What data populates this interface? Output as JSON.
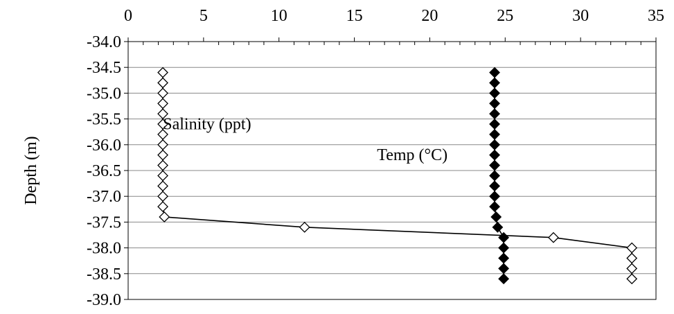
{
  "chart_data": {
    "type": "scatter",
    "title": "",
    "xlabel": "",
    "ylabel": "Depth (m)",
    "xlim": [
      0,
      35
    ],
    "ylim": [
      -39.0,
      -34.0
    ],
    "x_ticks": [
      "0",
      "5",
      "10",
      "15",
      "20",
      "25",
      "30",
      "35"
    ],
    "y_ticks": [
      "-34.0",
      "-34.5",
      "-35.0",
      "-35.5",
      "-36.0",
      "-36.5",
      "-37.0",
      "-37.5",
      "-38.0",
      "-38.5",
      "-39.0"
    ],
    "x_axis_position": "top",
    "grid": "horizontal",
    "series": [
      {
        "name": "Salinity (ppt)",
        "marker": "open-diamond",
        "line": true,
        "color": "#000000",
        "points": [
          {
            "x": 2.3,
            "y": -34.6
          },
          {
            "x": 2.3,
            "y": -34.8
          },
          {
            "x": 2.3,
            "y": -35.0
          },
          {
            "x": 2.3,
            "y": -35.2
          },
          {
            "x": 2.3,
            "y": -35.4
          },
          {
            "x": 2.3,
            "y": -35.6
          },
          {
            "x": 2.3,
            "y": -35.8
          },
          {
            "x": 2.3,
            "y": -36.0
          },
          {
            "x": 2.3,
            "y": -36.2
          },
          {
            "x": 2.3,
            "y": -36.4
          },
          {
            "x": 2.3,
            "y": -36.6
          },
          {
            "x": 2.3,
            "y": -36.8
          },
          {
            "x": 2.3,
            "y": -37.0
          },
          {
            "x": 2.3,
            "y": -37.2
          },
          {
            "x": 2.4,
            "y": -37.4
          },
          {
            "x": 11.7,
            "y": -37.6
          },
          {
            "x": 28.2,
            "y": -37.8
          },
          {
            "x": 33.4,
            "y": -38.0
          },
          {
            "x": 33.4,
            "y": -38.2
          },
          {
            "x": 33.4,
            "y": -38.4
          },
          {
            "x": 33.4,
            "y": -38.6
          }
        ]
      },
      {
        "name": "Temp (°C)",
        "marker": "filled-diamond",
        "line": true,
        "color": "#000000",
        "points": [
          {
            "x": 24.3,
            "y": -34.6
          },
          {
            "x": 24.3,
            "y": -34.8
          },
          {
            "x": 24.3,
            "y": -35.0
          },
          {
            "x": 24.3,
            "y": -35.2
          },
          {
            "x": 24.3,
            "y": -35.4
          },
          {
            "x": 24.3,
            "y": -35.6
          },
          {
            "x": 24.3,
            "y": -35.8
          },
          {
            "x": 24.3,
            "y": -36.0
          },
          {
            "x": 24.3,
            "y": -36.2
          },
          {
            "x": 24.3,
            "y": -36.4
          },
          {
            "x": 24.3,
            "y": -36.6
          },
          {
            "x": 24.3,
            "y": -36.8
          },
          {
            "x": 24.3,
            "y": -37.0
          },
          {
            "x": 24.3,
            "y": -37.2
          },
          {
            "x": 24.4,
            "y": -37.4
          },
          {
            "x": 24.5,
            "y": -37.6
          },
          {
            "x": 24.9,
            "y": -37.8
          },
          {
            "x": 24.9,
            "y": -38.0
          },
          {
            "x": 24.9,
            "y": -38.2
          },
          {
            "x": 24.9,
            "y": -38.4
          },
          {
            "x": 24.9,
            "y": -38.6
          }
        ]
      }
    ]
  }
}
